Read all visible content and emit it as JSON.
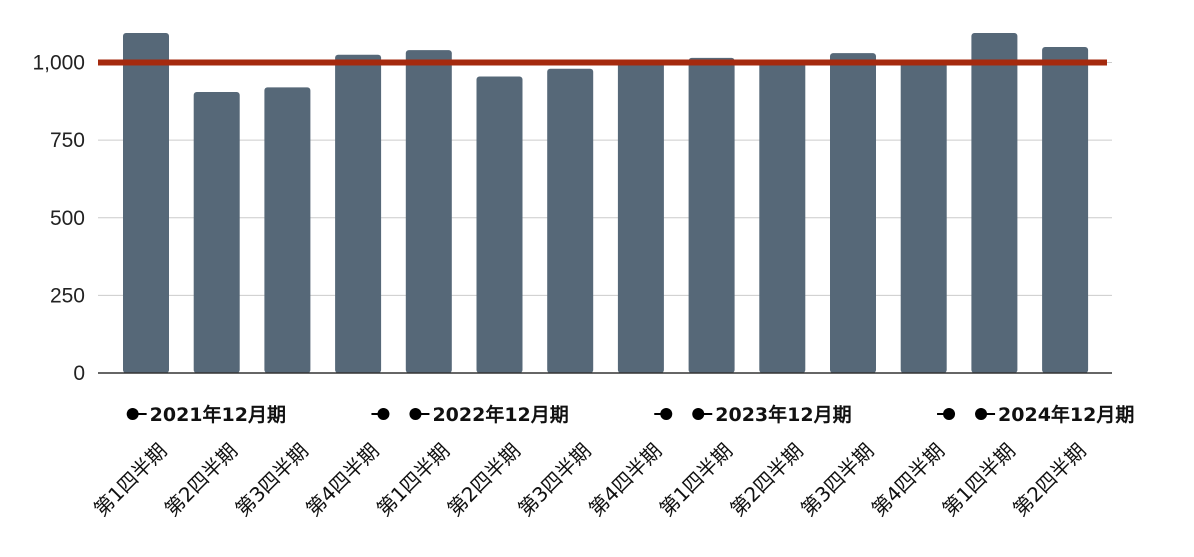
{
  "chart_data": {
    "type": "bar",
    "title": "",
    "xlabel": "",
    "ylabel": "",
    "ylim": [
      0,
      1200
    ],
    "yticks": [
      0,
      250,
      500,
      750,
      1000
    ],
    "ytick_labels": [
      "0",
      "250",
      "500",
      "750",
      "1,000"
    ],
    "categories": [
      "第1四半期",
      "第2四半期",
      "第3四半期",
      "第4四半期",
      "第1四半期",
      "第2四半期",
      "第3四半期",
      "第4四半期",
      "第1四半期",
      "第2四半期",
      "第3四半期",
      "第4四半期",
      "第1四半期",
      "第2四半期"
    ],
    "values": [
      1095,
      905,
      920,
      1025,
      1040,
      955,
      980,
      1000,
      1015,
      1005,
      1030,
      1000,
      1095,
      1050
    ],
    "reference_line": 1000,
    "groups": [
      {
        "label": "2021年12月期",
        "start": 0,
        "end": 3
      },
      {
        "label": "2022年12月期",
        "start": 4,
        "end": 7
      },
      {
        "label": "2023年12月期",
        "start": 8,
        "end": 11
      },
      {
        "label": "2024年12月期",
        "start": 12,
        "end": 13
      }
    ],
    "grid": true,
    "colors": {
      "bar": "#566878",
      "reference_line": "#a52a0e",
      "grid": "#cccccc",
      "axis": "#333333"
    }
  }
}
